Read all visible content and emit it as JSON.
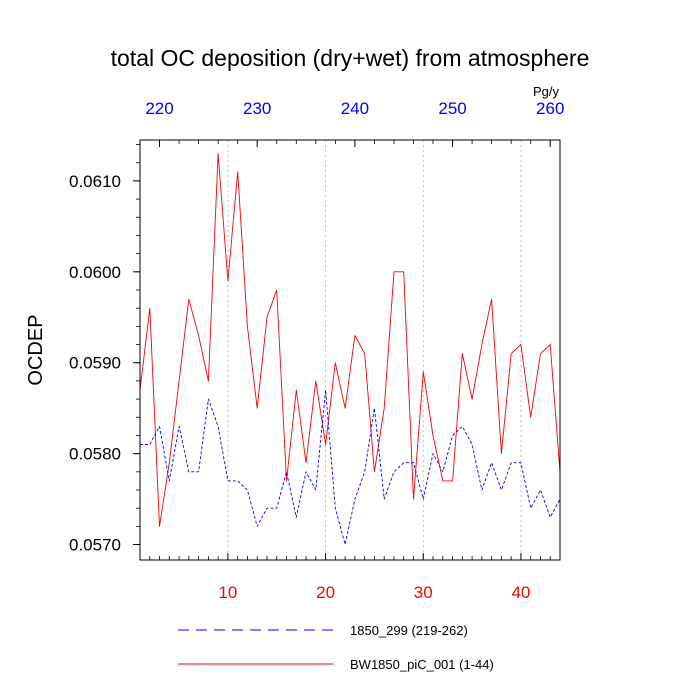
{
  "chart_data": {
    "type": "line",
    "title": "total OC deposition (dry+wet) from atmosphere",
    "ylabel": "OCDEP",
    "units": "Pg/y",
    "xlim": [
      1,
      44
    ],
    "ylim": [
      0.05683,
      0.06145
    ],
    "x_ticks": [
      "10",
      "20",
      "30",
      "40"
    ],
    "top_xlim": [
      218,
      261
    ],
    "top_ticks": [
      "220",
      "230",
      "240",
      "250",
      "260"
    ],
    "y_ticks": [
      "0.0570",
      "0.0580",
      "0.0590",
      "0.0600",
      "0.0610"
    ],
    "colors": {
      "bottom_axis": "#ff0000",
      "top_axis": "#0000ff",
      "grid": "#b0b0b0"
    },
    "series": [
      {
        "name": "BW1850_piC_001 (1-44)",
        "legend": "BW1850_piC_001 (1-44)",
        "color": "#ff0000",
        "dash": "solid",
        "x": [
          1,
          2,
          3,
          4,
          5,
          6,
          7,
          8,
          9,
          10,
          11,
          12,
          13,
          14,
          15,
          16,
          17,
          18,
          19,
          20,
          21,
          22,
          23,
          24,
          25,
          26,
          27,
          28,
          29,
          30,
          31,
          32,
          33,
          34,
          35,
          36,
          37,
          38,
          39,
          40,
          41,
          42,
          43,
          44
        ],
        "values": [
          0.0587,
          0.0596,
          0.0572,
          0.0579,
          0.0588,
          0.0597,
          0.0593,
          0.0588,
          0.0613,
          0.0599,
          0.0611,
          0.0594,
          0.0585,
          0.0595,
          0.0598,
          0.0577,
          0.0587,
          0.0579,
          0.0588,
          0.0581,
          0.059,
          0.0585,
          0.0593,
          0.0591,
          0.0578,
          0.0585,
          0.06,
          0.06,
          0.0575,
          0.0589,
          0.0582,
          0.0577,
          0.0577,
          0.0591,
          0.0586,
          0.0592,
          0.0597,
          0.058,
          0.0591,
          0.0592,
          0.0584,
          0.0591,
          0.0592,
          0.0578
        ]
      },
      {
        "name": "1850_299 (219-262)",
        "legend": "1850_299 (219-262)",
        "color": "#0000ff",
        "dash": "dashed",
        "x": [
          1,
          2,
          3,
          4,
          5,
          6,
          7,
          8,
          9,
          10,
          11,
          12,
          13,
          14,
          15,
          16,
          17,
          18,
          19,
          20,
          21,
          22,
          23,
          24,
          25,
          26,
          27,
          28,
          29,
          30,
          31,
          32,
          33,
          34,
          35,
          36,
          37,
          38,
          39,
          40,
          41,
          42,
          43,
          44
        ],
        "values": [
          0.0581,
          0.0581,
          0.0583,
          0.0577,
          0.0583,
          0.0578,
          0.0578,
          0.0586,
          0.0583,
          0.0577,
          0.0577,
          0.0576,
          0.0572,
          0.0574,
          0.0574,
          0.0578,
          0.0573,
          0.0578,
          0.0576,
          0.0587,
          0.0574,
          0.057,
          0.0575,
          0.0578,
          0.0585,
          0.0575,
          0.0578,
          0.0579,
          0.0579,
          0.0575,
          0.058,
          0.0578,
          0.0582,
          0.0583,
          0.0581,
          0.0576,
          0.0579,
          0.0576,
          0.0579,
          0.0579,
          0.0574,
          0.0576,
          0.0573,
          0.0575
        ]
      }
    ]
  }
}
